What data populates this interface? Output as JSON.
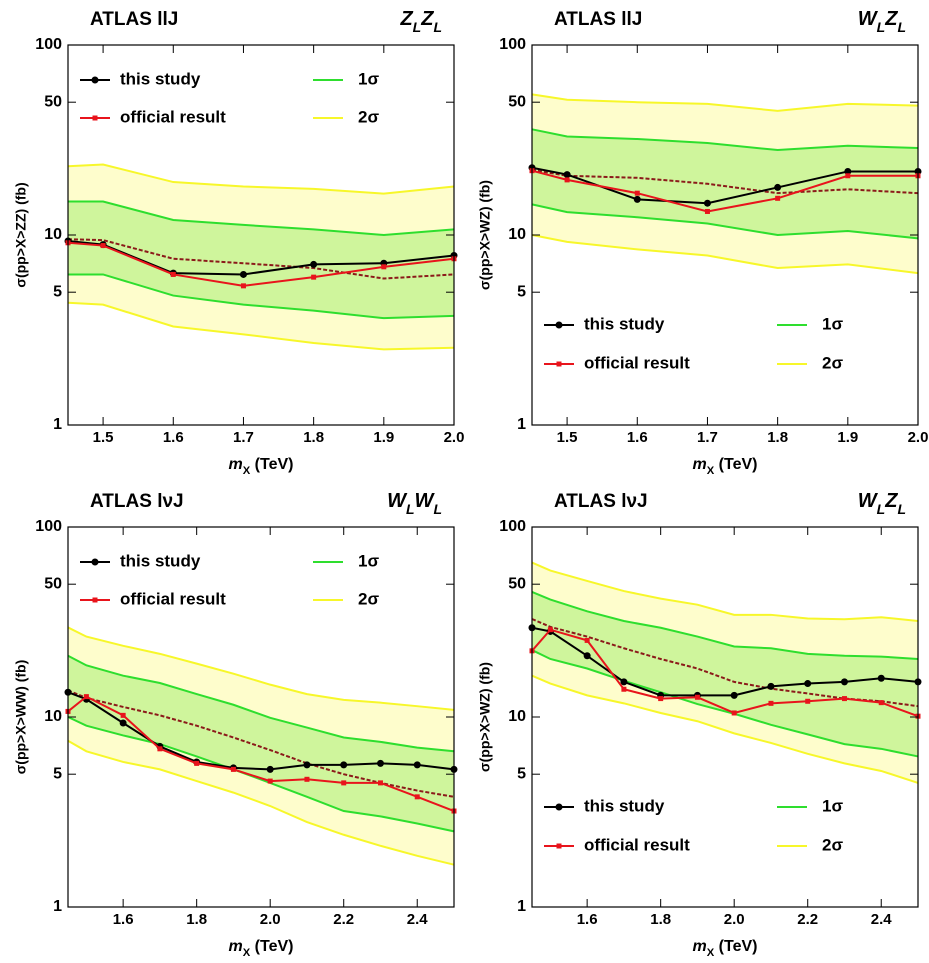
{
  "chart_data": [
    {
      "type": "line",
      "title": "ATLAS llJ",
      "label_right": [
        {
          "text": "Z"
        },
        {
          "text": "L",
          "sub": true
        },
        {
          "text": "Z"
        },
        {
          "text": "L",
          "sub": true
        }
      ],
      "xlabel": [
        {
          "text": "m",
          "italic": true
        },
        {
          "text": "X",
          "sub": true
        },
        {
          "text": " (TeV)"
        }
      ],
      "ylabel": "σ(pp>X>ZZ) (fb)",
      "x": [
        1.45,
        1.5,
        1.6,
        1.7,
        1.8,
        1.9,
        2.0
      ],
      "xlim": [
        1.45,
        2.0
      ],
      "xticks": [
        1.5,
        1.6,
        1.7,
        1.8,
        1.9,
        {
          "value": 2.0,
          "label": "2.0"
        }
      ],
      "ylim": [
        1,
        100
      ],
      "yticks": [
        1,
        5,
        10,
        50,
        100
      ],
      "log_y": true,
      "legend": "upper",
      "bands": [
        {
          "name": "1σ",
          "color": "#2ede2e",
          "fill": "#cff59c",
          "upper": [
            15,
            15,
            12,
            11.3,
            10.7,
            10,
            10.7
          ],
          "lower": [
            6.2,
            6.2,
            4.8,
            4.3,
            4.0,
            3.65,
            3.75
          ]
        },
        {
          "name": "2σ",
          "color": "#f7f72a",
          "fill": "#fefdcc",
          "upper": [
            23,
            23.5,
            19,
            18,
            17.5,
            16.5,
            18
          ],
          "lower": [
            4.4,
            4.3,
            3.3,
            3.0,
            2.7,
            2.5,
            2.55
          ]
        }
      ],
      "series": [
        {
          "color": "#8b1a1a",
          "dash": true,
          "values": [
            9.5,
            9.4,
            7.5,
            7.1,
            6.7,
            5.9,
            6.2
          ]
        },
        {
          "name": "this study",
          "color": "#000000",
          "marker": "circle",
          "values": [
            9.3,
            8.9,
            6.3,
            6.2,
            7.0,
            7.1,
            7.8
          ]
        },
        {
          "name": "official result",
          "color": "#e8141c",
          "marker": "square",
          "values": [
            9.1,
            8.8,
            6.2,
            5.4,
            6.0,
            6.8,
            7.5
          ]
        }
      ]
    },
    {
      "type": "line",
      "title": "ATLAS llJ",
      "label_right": [
        {
          "text": "W"
        },
        {
          "text": "L",
          "sub": true
        },
        {
          "text": "Z"
        },
        {
          "text": "L",
          "sub": true
        }
      ],
      "xlabel": [
        {
          "text": "m",
          "italic": true
        },
        {
          "text": "X",
          "sub": true
        },
        {
          "text": " (TeV)"
        }
      ],
      "ylabel": "σ(pp>X>WZ) (fb)",
      "x": [
        1.45,
        1.5,
        1.6,
        1.7,
        1.8,
        1.9,
        2.0
      ],
      "xlim": [
        1.45,
        2.0
      ],
      "xticks": [
        1.5,
        1.6,
        1.7,
        1.8,
        1.9,
        {
          "value": 2.0,
          "label": "2.0"
        }
      ],
      "ylim": [
        1,
        100
      ],
      "yticks": [
        1,
        5,
        10,
        50,
        100
      ],
      "log_y": true,
      "legend": "lower",
      "bands": [
        {
          "name": "1σ",
          "color": "#2ede2e",
          "fill": "#cff59c",
          "upper": [
            36,
            33,
            32,
            30.5,
            28,
            29.5,
            28.7
          ],
          "lower": [
            14.5,
            13.2,
            12.4,
            11.5,
            10,
            10.5,
            9.6
          ]
        },
        {
          "name": "2σ",
          "color": "#f7f72a",
          "fill": "#fefdcc",
          "upper": [
            55,
            51.5,
            50,
            49,
            45,
            49,
            48
          ],
          "lower": [
            10,
            9.2,
            8.4,
            7.8,
            6.7,
            7.0,
            6.3
          ]
        }
      ],
      "series": [
        {
          "color": "#8b1a1a",
          "dash": true,
          "values": [
            22,
            20.5,
            20,
            18.6,
            16.6,
            17.4,
            16.6
          ]
        },
        {
          "name": "this study",
          "color": "#000000",
          "marker": "circle",
          "values": [
            22.6,
            20.8,
            15.4,
            14.7,
            17.8,
            21.6,
            21.6
          ]
        },
        {
          "name": "official result",
          "color": "#e8141c",
          "marker": "square",
          "values": [
            21.8,
            19.5,
            16.6,
            13.3,
            15.6,
            20.5,
            20.5
          ]
        }
      ]
    },
    {
      "type": "line",
      "title": "ATLAS lνJ",
      "label_right": [
        {
          "text": "W"
        },
        {
          "text": "L",
          "sub": true
        },
        {
          "text": "W"
        },
        {
          "text": "L",
          "sub": true
        }
      ],
      "xlabel": [
        {
          "text": "m",
          "italic": true
        },
        {
          "text": "X",
          "sub": true
        },
        {
          "text": " (TeV)"
        }
      ],
      "ylabel": "σ(pp>X>WW) (fb)",
      "x": [
        1.45,
        1.5,
        1.6,
        1.7,
        1.8,
        1.9,
        2.0,
        2.1,
        2.2,
        2.3,
        2.4,
        2.5
      ],
      "xlim": [
        1.45,
        2.5
      ],
      "xticks": [
        1.6,
        1.8,
        {
          "value": 2.0,
          "label": "2.0"
        },
        2.2,
        2.4
      ],
      "ylim": [
        1,
        100
      ],
      "yticks": [
        1,
        5,
        10,
        50,
        100
      ],
      "log_y": true,
      "legend": "upper",
      "bands": [
        {
          "name": "1σ",
          "color": "#2ede2e",
          "fill": "#cff59c",
          "upper": [
            21,
            18.7,
            16.5,
            15.1,
            13.2,
            11.6,
            9.9,
            8.8,
            7.8,
            7.4,
            6.9,
            6.6
          ],
          "lower": [
            10,
            9,
            8,
            7.2,
            6.2,
            5.3,
            4.5,
            3.8,
            3.2,
            3.0,
            2.75,
            2.5
          ]
        },
        {
          "name": "2σ",
          "color": "#f7f72a",
          "fill": "#fefdcc",
          "upper": [
            29.6,
            26.5,
            23.7,
            21.5,
            19.1,
            16.9,
            14.8,
            13.2,
            12.3,
            11.9,
            11.4,
            10.9
          ],
          "lower": [
            7.5,
            6.6,
            5.8,
            5.3,
            4.6,
            4.0,
            3.4,
            2.8,
            2.4,
            2.1,
            1.86,
            1.67
          ]
        }
      ],
      "series": [
        {
          "color": "#8b1a1a",
          "dash": true,
          "values": [
            13.8,
            12.6,
            11.3,
            10.2,
            9,
            7.8,
            6.7,
            5.7,
            5.0,
            4.5,
            4.1,
            3.8
          ]
        },
        {
          "name": "this study",
          "color": "#000000",
          "marker": "circle",
          "values": [
            13.5,
            12.4,
            9.3,
            7.0,
            5.8,
            5.4,
            5.3,
            5.6,
            5.6,
            5.7,
            5.6,
            5.3
          ]
        },
        {
          "name": "official result",
          "color": "#e8141c",
          "marker": "square",
          "values": [
            10.7,
            12.8,
            10.2,
            6.8,
            5.7,
            5.3,
            4.6,
            4.7,
            4.5,
            4.5,
            3.8,
            3.2
          ]
        }
      ]
    },
    {
      "type": "line",
      "title": "ATLAS lνJ",
      "label_right": [
        {
          "text": "W"
        },
        {
          "text": "L",
          "sub": true
        },
        {
          "text": "Z"
        },
        {
          "text": "L",
          "sub": true
        }
      ],
      "xlabel": [
        {
          "text": "m",
          "italic": true
        },
        {
          "text": "X",
          "sub": true
        },
        {
          "text": " (TeV)"
        }
      ],
      "ylabel": "σ(pp>X>WZ) (fb)",
      "x": [
        1.45,
        1.5,
        1.6,
        1.7,
        1.8,
        1.9,
        2.0,
        2.1,
        2.2,
        2.3,
        2.4,
        2.5
      ],
      "xlim": [
        1.45,
        2.5
      ],
      "xticks": [
        1.6,
        1.8,
        {
          "value": 2.0,
          "label": "2.0"
        },
        2.2,
        2.4
      ],
      "ylim": [
        1,
        100
      ],
      "yticks": [
        1,
        5,
        10,
        50,
        100
      ],
      "log_y": true,
      "legend": "lower",
      "bands": [
        {
          "name": "1σ",
          "color": "#2ede2e",
          "fill": "#cff59c",
          "upper": [
            45.5,
            41.5,
            36,
            32,
            29.5,
            26.5,
            23.5,
            23,
            21.5,
            21,
            20.8,
            20.2
          ],
          "lower": [
            22.5,
            20.2,
            18,
            15.5,
            13.5,
            11.7,
            10.4,
            9.1,
            8.1,
            7.2,
            6.8,
            6.2
          ]
        },
        {
          "name": "2σ",
          "color": "#f7f72a",
          "fill": "#fefdcc",
          "upper": [
            65,
            59,
            52,
            46,
            42,
            39,
            34.5,
            34.5,
            33,
            32.7,
            33.5,
            32
          ],
          "lower": [
            16.5,
            15,
            13,
            11.8,
            10.5,
            9.5,
            8.2,
            7.3,
            6.4,
            5.7,
            5.2,
            4.5
          ]
        }
      ],
      "series": [
        {
          "color": "#8b1a1a",
          "dash": true,
          "values": [
            32.8,
            29.8,
            26.5,
            23,
            20.2,
            18,
            15.3,
            14.1,
            13.3,
            12.5,
            12.1,
            11.4
          ]
        },
        {
          "name": "this study",
          "color": "#000000",
          "marker": "circle",
          "values": [
            29.5,
            28.2,
            21,
            15.3,
            13,
            13,
            13,
            14.5,
            15,
            15.3,
            16,
            15.3
          ]
        },
        {
          "name": "official result",
          "color": "#e8141c",
          "marker": "square",
          "values": [
            22.3,
            28.8,
            25.3,
            14,
            12.5,
            12.7,
            10.5,
            11.8,
            12.1,
            12.5,
            11.9,
            10.1
          ]
        }
      ]
    }
  ]
}
